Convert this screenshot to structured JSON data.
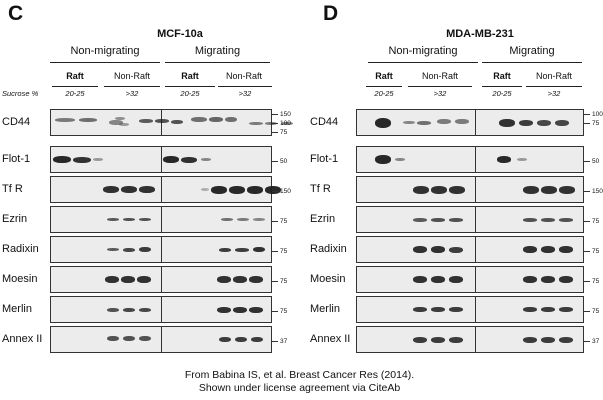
{
  "panels": [
    {
      "letter": "C",
      "cell_line": "MCF-10a",
      "groups": [
        "Non-migrating",
        "Migrating"
      ],
      "sub_labels": [
        "Raft",
        "Non-Raft",
        "Raft",
        "Non-Raft"
      ],
      "percentages": [
        "20-25",
        ">32",
        "20-25",
        ">32"
      ],
      "sucrose_label": "Sucrose %",
      "rows": [
        "CD44",
        "Flot-1",
        "Tf R",
        "Ezrin",
        "Radixin",
        "Moesin",
        "Merlin",
        "Annex II"
      ],
      "markers": [
        [
          "150",
          "100",
          "75"
        ],
        [
          "50"
        ],
        [
          "150"
        ],
        [
          "75"
        ],
        [
          "75"
        ],
        [
          "75"
        ],
        [
          "75"
        ],
        [
          "37"
        ]
      ]
    },
    {
      "letter": "D",
      "cell_line": "MDA-MB-231",
      "groups": [
        "Non-migrating",
        "Migrating"
      ],
      "sub_labels": [
        "Raft",
        "Non-Raft",
        "Raft",
        "Non-Raft"
      ],
      "percentages": [
        "20-25",
        ">32",
        "20-25",
        ">32"
      ],
      "rows": [
        "CD44",
        "Flot-1",
        "Tf R",
        "Ezrin",
        "Radixin",
        "Moesin",
        "Merlin",
        "Annex II"
      ],
      "markers": [
        [
          "100",
          "75"
        ],
        [
          "50"
        ],
        [
          "150"
        ],
        [
          "75"
        ],
        [
          "75"
        ],
        [
          "75"
        ],
        [
          "75"
        ],
        [
          "37"
        ]
      ]
    }
  ],
  "caption": {
    "line1": "From Babina IS, et al. Breast Cancer Res (2014).",
    "line2": "Shown under license agreement via CiteAb"
  }
}
